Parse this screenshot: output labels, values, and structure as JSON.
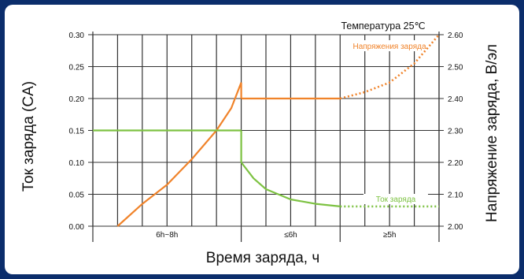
{
  "colors": {
    "frame": "#0b2d6b",
    "voltage": "#f0832a",
    "current": "#7dc242"
  },
  "chart_data": {
    "type": "line",
    "annotation": "Температура 25℃",
    "xlabel": "Время заряда, ч",
    "ylabel_left": "Ток заряда (CA)",
    "ylabel_right": "Напряжение заряда, В/эл",
    "ylim_left": [
      0,
      0.3
    ],
    "ylim_right": [
      2.0,
      2.6
    ],
    "yticks_left": [
      "0.00",
      "0.05",
      "0.10",
      "0.15",
      "0.20",
      "0.25",
      "0.30"
    ],
    "yticks_right": [
      "2.00",
      "2.10",
      "2.20",
      "2.30",
      "2.40",
      "2.50",
      "2.60"
    ],
    "x_columns": 14,
    "phases": [
      {
        "label": "6h~8h",
        "start_col": 0,
        "end_col": 6
      },
      {
        "label": "≤6h",
        "start_col": 6,
        "end_col": 10
      },
      {
        "label": "≥5h",
        "start_col": 10,
        "end_col": 14
      }
    ],
    "grid": true,
    "series": [
      {
        "name": "Напряжения заряда",
        "axis": "right",
        "color": "#f0832a",
        "segments": [
          {
            "style": "solid",
            "x": [
              1.0,
              2.0,
              3.0,
              4.0,
              5.0,
              5.6,
              6.0
            ],
            "y": [
              2.0,
              2.07,
              2.13,
              2.21,
              2.3,
              2.37,
              2.45
            ]
          },
          {
            "style": "solid",
            "x": [
              6.0,
              6.0
            ],
            "y": [
              2.45,
              2.4
            ]
          },
          {
            "style": "solid",
            "x": [
              6.0,
              10.0
            ],
            "y": [
              2.4,
              2.4
            ]
          },
          {
            "style": "dotted",
            "x": [
              10.0,
              11.0,
              12.0,
              13.0,
              14.0
            ],
            "y": [
              2.4,
              2.42,
              2.45,
              2.51,
              2.6
            ]
          }
        ]
      },
      {
        "name": "Ток заряда",
        "axis": "left",
        "color": "#7dc242",
        "segments": [
          {
            "style": "solid",
            "x": [
              0.0,
              6.0
            ],
            "y": [
              0.15,
              0.15
            ]
          },
          {
            "style": "solid",
            "x": [
              6.0,
              6.0
            ],
            "y": [
              0.15,
              0.1
            ]
          },
          {
            "style": "solid",
            "x": [
              6.0,
              6.5,
              7.0,
              8.0,
              9.0,
              10.0
            ],
            "y": [
              0.1,
              0.075,
              0.058,
              0.042,
              0.035,
              0.031
            ]
          },
          {
            "style": "dotted",
            "x": [
              10.0,
              14.0
            ],
            "y": [
              0.031,
              0.031
            ]
          }
        ]
      }
    ]
  }
}
